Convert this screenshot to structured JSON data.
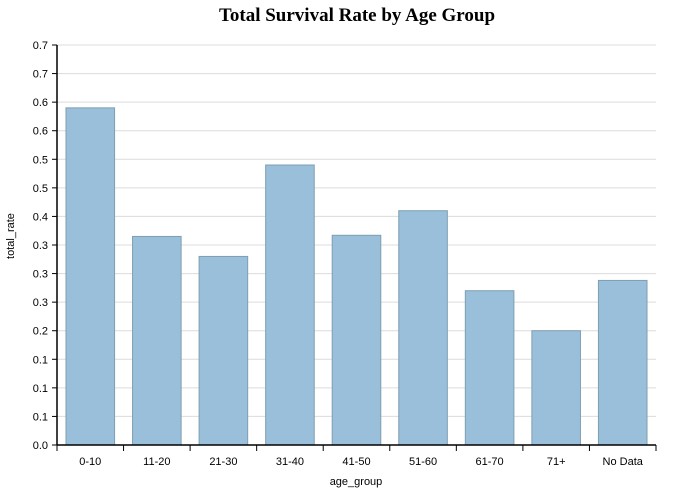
{
  "chart_data": {
    "type": "bar",
    "title": "Total Survival Rate by Age Group",
    "xlabel": "age_group",
    "ylabel": "total_rate",
    "categories": [
      "0-10",
      "11-20",
      "21-30",
      "31-40",
      "41-50",
      "51-60",
      "61-70",
      "71+",
      "No Data"
    ],
    "values": [
      0.59,
      0.365,
      0.33,
      0.49,
      0.367,
      0.41,
      0.27,
      0.2,
      0.288
    ],
    "ylim": [
      0,
      0.7
    ],
    "ytick_values": [
      0,
      0.05,
      0.1,
      0.15,
      0.2,
      0.25,
      0.3,
      0.35,
      0.4,
      0.45,
      0.5,
      0.55,
      0.6,
      0.65,
      0.7
    ],
    "ytick_labels": [
      "0.0",
      "0.1",
      "0.1",
      "0.1",
      "0.2",
      "0.3",
      "0.3",
      "0.3",
      "0.4",
      "0.5",
      "0.5",
      "0.6",
      "0.6",
      "0.7",
      "0.7"
    ],
    "grid": true,
    "bar_color": "#99bfda",
    "bar_stroke": "#7f9fb0"
  }
}
